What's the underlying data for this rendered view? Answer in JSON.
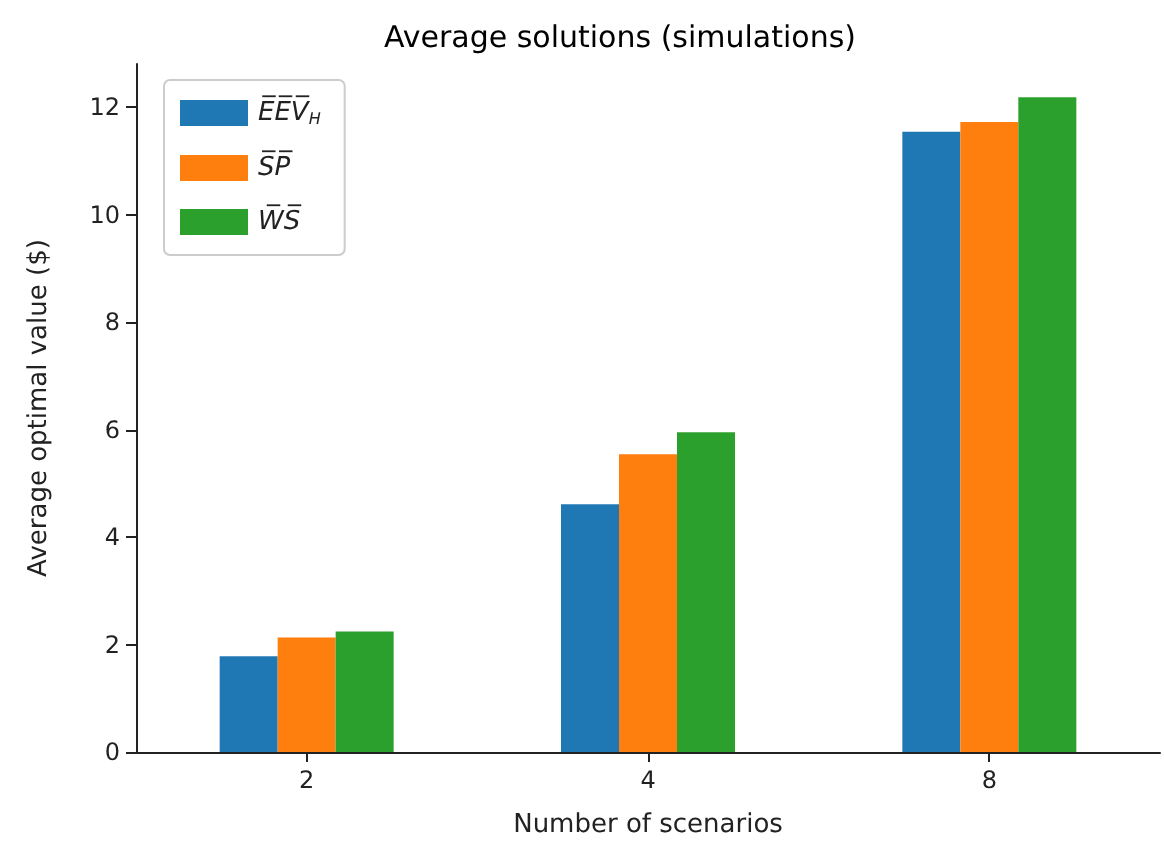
{
  "chart_data": {
    "type": "bar",
    "title": "Average solutions (simulations)",
    "xlabel": "Number of scenarios",
    "ylabel": "Average optimal value ($)",
    "categories": [
      "2",
      "4",
      "8"
    ],
    "series": [
      {
        "name": "E̅E̅V̅$_{H}$",
        "color": "#1f77b4",
        "values": [
          1.78,
          4.61,
          11.54
        ]
      },
      {
        "name": "S̅P̅",
        "color": "#ff7f0e",
        "values": [
          2.13,
          5.54,
          11.72
        ]
      },
      {
        "name": "W̅S̅",
        "color": "#2ca02c",
        "values": [
          2.24,
          5.95,
          12.18
        ]
      }
    ],
    "ylim": [
      0,
      12.8
    ],
    "yticks": [
      0,
      2,
      4,
      6,
      8,
      10,
      12
    ],
    "grid": false,
    "legend": "top left"
  }
}
